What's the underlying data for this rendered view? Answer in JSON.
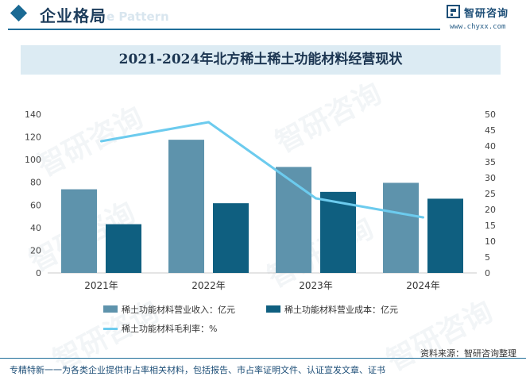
{
  "header": {
    "title": "企业格局",
    "watermark_text": "e Pattern",
    "brand_name": "智研咨询",
    "brand_url": "www.chyxx.com"
  },
  "chart_data": {
    "type": "bar+line",
    "title": "2021-2024年北方稀土稀土功能材料经营现状",
    "categories": [
      "2021年",
      "2022年",
      "2023年",
      "2024年"
    ],
    "series": [
      {
        "name": "稀土功能材料营业收入：亿元",
        "type": "bar",
        "axis": "left",
        "color": "#5e93ac",
        "values": [
          73.8,
          117.5,
          93.5,
          79.5
        ]
      },
      {
        "name": "稀土功能材料营业成本：亿元",
        "type": "bar",
        "axis": "left",
        "color": "#0f5f80",
        "values": [
          43,
          61.5,
          71.5,
          65.5
        ]
      },
      {
        "name": "稀土功能材料毛利率：%",
        "type": "line",
        "axis": "right",
        "color": "#6ccbee",
        "values": [
          41.5,
          47.5,
          23.5,
          17.5
        ]
      }
    ],
    "y_left": {
      "min": 0,
      "max": 140,
      "ticks": [
        0,
        20,
        40,
        60,
        80,
        100,
        120,
        140
      ]
    },
    "y_right": {
      "min": 0,
      "max": 50,
      "ticks": [
        0,
        5,
        10,
        15,
        20,
        25,
        30,
        35,
        40,
        45,
        50
      ]
    },
    "grid": false,
    "legend_position": "bottom-center"
  },
  "source": "资料来源：智研咨询整理",
  "footer": "专精特新一一为各类企业提供市占率相关材料，包括报告、市占率证明文件、认证宣发文章、证书",
  "watermarks": [
    "智研咨询",
    "智研咨询",
    "智研咨询",
    "智研咨询",
    "智研咨询",
    "智研咨询"
  ]
}
